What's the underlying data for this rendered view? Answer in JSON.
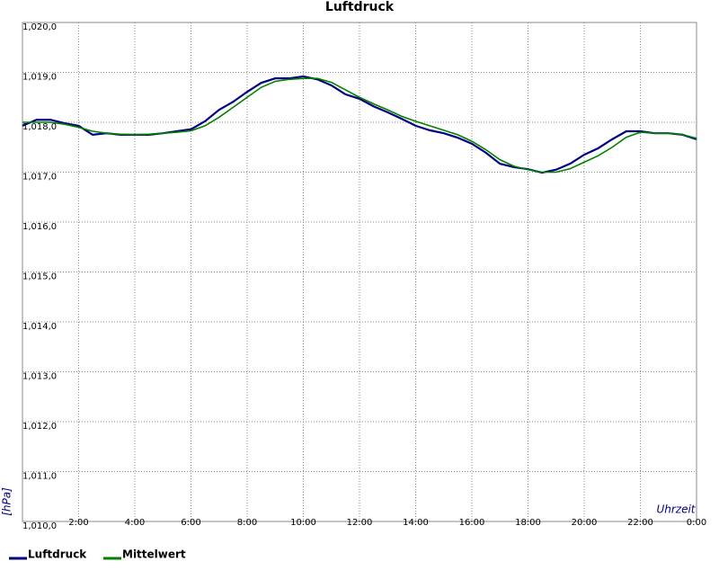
{
  "chart_data": {
    "type": "line",
    "title": "Luftdruck",
    "x_label": "Uhrzeit",
    "y_label": "[hPa]",
    "x": [
      0,
      0.5,
      1,
      1.5,
      2,
      2.5,
      3,
      3.5,
      4,
      4.5,
      5,
      5.5,
      6,
      6.5,
      7,
      7.5,
      8,
      8.5,
      9,
      9.5,
      10,
      10.5,
      11,
      11.5,
      12,
      12.5,
      13,
      13.5,
      14,
      14.5,
      15,
      15.5,
      16,
      16.5,
      17,
      17.5,
      18,
      18.5,
      19,
      19.5,
      20,
      20.5,
      21,
      21.5,
      22,
      22.5,
      23,
      23.5,
      24
    ],
    "series": [
      {
        "name": "Luftdruck",
        "color": "#000080",
        "values": [
          1017.93,
          1018.05,
          1018.05,
          1017.98,
          1017.93,
          1017.75,
          1017.78,
          1017.75,
          1017.75,
          1017.75,
          1017.78,
          1017.82,
          1017.86,
          1018.02,
          1018.25,
          1018.41,
          1018.61,
          1018.79,
          1018.88,
          1018.88,
          1018.92,
          1018.86,
          1018.74,
          1018.56,
          1018.47,
          1018.32,
          1018.2,
          1018.07,
          1017.93,
          1017.84,
          1017.78,
          1017.69,
          1017.57,
          1017.39,
          1017.17,
          1017.1,
          1017.06,
          1016.99,
          1017.05,
          1017.17,
          1017.35,
          1017.48,
          1017.66,
          1017.82,
          1017.82,
          1017.78,
          1017.78,
          1017.75,
          1017.66
        ]
      },
      {
        "name": "Mittelwert",
        "color": "#008000",
        "values": [
          1018.0,
          1018.0,
          1018.0,
          1017.96,
          1017.9,
          1017.82,
          1017.78,
          1017.76,
          1017.75,
          1017.76,
          1017.78,
          1017.8,
          1017.83,
          1017.93,
          1018.1,
          1018.3,
          1018.5,
          1018.7,
          1018.82,
          1018.86,
          1018.88,
          1018.88,
          1018.8,
          1018.65,
          1018.5,
          1018.37,
          1018.25,
          1018.12,
          1018.02,
          1017.93,
          1017.84,
          1017.75,
          1017.62,
          1017.45,
          1017.25,
          1017.12,
          1017.05,
          1017.0,
          1017.0,
          1017.07,
          1017.2,
          1017.33,
          1017.5,
          1017.7,
          1017.8,
          1017.78,
          1017.78,
          1017.75,
          1017.68
        ]
      }
    ],
    "xlim": [
      0,
      24
    ],
    "xticks": [
      {
        "value": 2,
        "label": "2:00"
      },
      {
        "value": 4,
        "label": "4:00"
      },
      {
        "value": 6,
        "label": "6:00"
      },
      {
        "value": 8,
        "label": "8:00"
      },
      {
        "value": 10,
        "label": "10:00"
      },
      {
        "value": 12,
        "label": "12:00"
      },
      {
        "value": 14,
        "label": "14:00"
      },
      {
        "value": 16,
        "label": "16:00"
      },
      {
        "value": 18,
        "label": "18:00"
      },
      {
        "value": 20,
        "label": "20:00"
      },
      {
        "value": 22,
        "label": "22:00"
      },
      {
        "value": 24,
        "label": "0:00"
      }
    ],
    "ylim": [
      1010,
      1020
    ],
    "yticks": [
      {
        "value": 1010,
        "label": "1,010,0"
      },
      {
        "value": 1011,
        "label": "1,011,0"
      },
      {
        "value": 1012,
        "label": "1,012,0"
      },
      {
        "value": 1013,
        "label": "1,013,0"
      },
      {
        "value": 1014,
        "label": "1,014,0"
      },
      {
        "value": 1015,
        "label": "1,015,0"
      },
      {
        "value": 1016,
        "label": "1,016,0"
      },
      {
        "value": 1017,
        "label": "1,017,0"
      },
      {
        "value": 1018,
        "label": "1,018,0"
      },
      {
        "value": 1019,
        "label": "1,019,0"
      },
      {
        "value": 1020,
        "label": "1,020,0"
      }
    ],
    "grid": true
  }
}
